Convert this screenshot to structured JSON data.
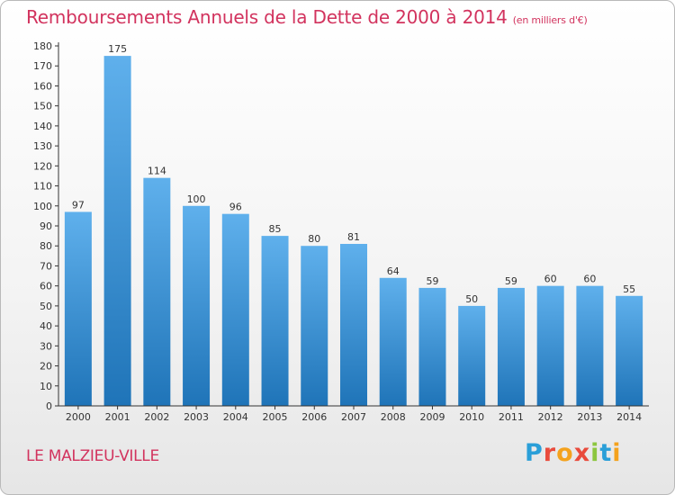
{
  "title": "Remboursements Annuels de la Dette de 2000 à 2014",
  "unit_note": "(en milliers d'€)",
  "place": "LE MALZIEU-VILLE",
  "logo": {
    "text": "Proxiti",
    "letters": [
      {
        "ch": "P",
        "color": "#2a9fd8"
      },
      {
        "ch": "r",
        "color": "#e94b3c"
      },
      {
        "ch": "o",
        "color": "#f4a21d"
      },
      {
        "ch": "x",
        "color": "#e94b3c"
      },
      {
        "ch": "i",
        "color": "#8cc63f"
      },
      {
        "ch": "t",
        "color": "#2a9fd8"
      },
      {
        "ch": "i",
        "color": "#f4a21d"
      }
    ]
  },
  "colors": {
    "title": "#d2335e",
    "bar_top": "#5fb0ec",
    "bar_bottom": "#1f74b8",
    "axis": "#333333",
    "grid": "#d9d9d9"
  },
  "chart_data": {
    "type": "bar",
    "categories": [
      "2000",
      "2001",
      "2002",
      "2003",
      "2004",
      "2005",
      "2006",
      "2007",
      "2008",
      "2009",
      "2010",
      "2011",
      "2012",
      "2013",
      "2014"
    ],
    "values": [
      97,
      175,
      114,
      100,
      96,
      85,
      80,
      81,
      64,
      59,
      50,
      59,
      60,
      60,
      55
    ],
    "ylim": [
      0,
      180
    ],
    "ytick_step": 10,
    "grid": false,
    "data_labels": true
  }
}
